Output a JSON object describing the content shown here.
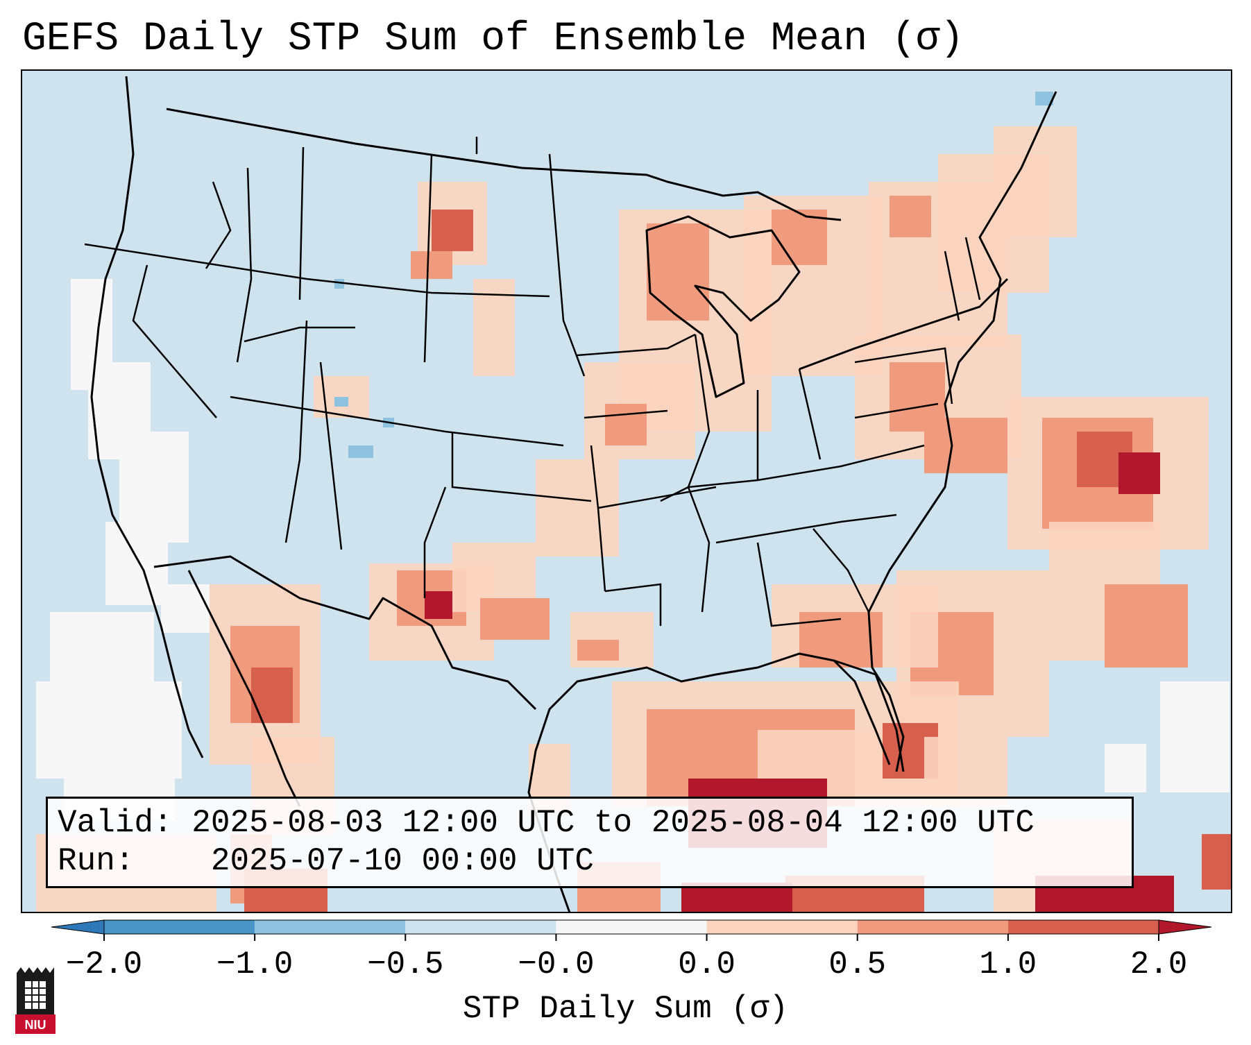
{
  "title": "GEFS Daily STP Sum of Ensemble Mean (σ)",
  "info": {
    "valid_label": "Valid:",
    "valid_value": "2025-08-03 12:00 UTC to 2025-08-04 12:00 UTC",
    "run_label": "Run:",
    "run_value": "2025-07-10 00:00 UTC"
  },
  "colorbar": {
    "label": "STP Daily Sum (σ)",
    "ticks": [
      "−2.0",
      "−1.0",
      "−0.5",
      "−0.0",
      "0.0",
      "0.5",
      "1.0",
      "2.0"
    ],
    "colors": [
      "#2f78b7",
      "#4b94c8",
      "#8fc2de",
      "#cfe3ef",
      "#f7f7f7",
      "#fbd4bf",
      "#f19b7e",
      "#d6604d",
      "#b2182b"
    ]
  },
  "logo": {
    "text": "NIU"
  },
  "map": {
    "ocean_color": "#cfe3ef",
    "land_color": "#cfe3ef",
    "line_color": "#000000"
  }
}
